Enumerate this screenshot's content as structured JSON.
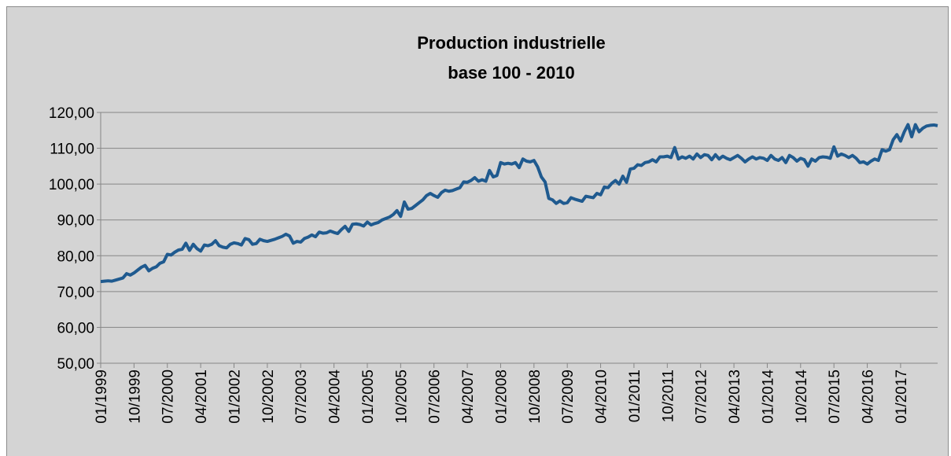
{
  "chart_data": {
    "type": "line",
    "title": "Production industrielle",
    "subtitle": "base 100 - 2010",
    "categories": [
      "01/1999",
      null,
      null,
      null,
      null,
      null,
      null,
      null,
      null,
      "10/1999",
      null,
      null,
      null,
      null,
      null,
      null,
      null,
      null,
      "07/2000",
      null,
      null,
      null,
      null,
      null,
      null,
      null,
      null,
      "04/2001",
      null,
      null,
      null,
      null,
      null,
      null,
      null,
      null,
      "01/2002",
      null,
      null,
      null,
      null,
      null,
      null,
      null,
      null,
      "10/2002",
      null,
      null,
      null,
      null,
      null,
      null,
      null,
      null,
      "07/2003",
      null,
      null,
      null,
      null,
      null,
      null,
      null,
      null,
      "04/2004",
      null,
      null,
      null,
      null,
      null,
      null,
      null,
      null,
      "01/2005",
      null,
      null,
      null,
      null,
      null,
      null,
      null,
      null,
      "10/2005",
      null,
      null,
      null,
      null,
      null,
      null,
      null,
      null,
      "07/2006",
      null,
      null,
      null,
      null,
      null,
      null,
      null,
      null,
      "04/2007",
      null,
      null,
      null,
      null,
      null,
      null,
      null,
      null,
      "01/2008",
      null,
      null,
      null,
      null,
      null,
      null,
      null,
      null,
      "10/2008",
      null,
      null,
      null,
      null,
      null,
      null,
      null,
      null,
      "07/2009",
      null,
      null,
      null,
      null,
      null,
      null,
      null,
      null,
      "04/2010",
      null,
      null,
      null,
      null,
      null,
      null,
      null,
      null,
      "01/2011",
      null,
      null,
      null,
      null,
      null,
      null,
      null,
      null,
      "10/2011",
      null,
      null,
      null,
      null,
      null,
      null,
      null,
      null,
      "07/2012",
      null,
      null,
      null,
      null,
      null,
      null,
      null,
      null,
      "04/2013",
      null,
      null,
      null,
      null,
      null,
      null,
      null,
      null,
      "01/2014",
      null,
      null,
      null,
      null,
      null,
      null,
      null,
      null,
      "10/2014",
      null,
      null,
      null,
      null,
      null,
      null,
      null,
      null,
      "07/2015",
      null,
      null,
      null,
      null,
      null,
      null,
      null,
      null,
      "04/2016",
      null,
      null,
      null,
      null,
      null,
      null,
      null,
      null,
      "01/2017",
      null,
      null,
      null,
      null,
      null,
      null,
      null,
      null,
      null,
      null
    ],
    "series": [
      {
        "color": "#1f5a8f",
        "values": [
          72.8,
          72.9,
          73.0,
          72.9,
          73.2,
          73.5,
          73.8,
          75.0,
          74.6,
          75.2,
          76.0,
          76.8,
          77.3,
          75.8,
          76.5,
          76.9,
          77.9,
          78.3,
          80.4,
          80.2,
          81.0,
          81.6,
          81.8,
          83.5,
          81.5,
          83.2,
          82.0,
          81.3,
          83.0,
          82.8,
          83.2,
          84.2,
          82.8,
          82.4,
          82.2,
          83.2,
          83.6,
          83.4,
          83.0,
          84.8,
          84.5,
          83.2,
          83.4,
          84.6,
          84.2,
          84.0,
          84.3,
          84.6,
          85.0,
          85.4,
          86.0,
          85.5,
          83.5,
          84.0,
          83.8,
          84.8,
          85.2,
          85.8,
          85.3,
          86.6,
          86.3,
          86.4,
          86.9,
          86.5,
          86.2,
          87.3,
          88.2,
          86.8,
          88.8,
          88.9,
          88.7,
          88.3,
          89.4,
          88.6,
          89.0,
          89.3,
          90.0,
          90.4,
          90.8,
          91.5,
          92.6,
          91.0,
          95.0,
          93.0,
          93.2,
          94.0,
          94.8,
          95.6,
          96.8,
          97.4,
          96.8,
          96.3,
          97.6,
          98.3,
          98.0,
          98.2,
          98.6,
          99.0,
          100.6,
          100.5,
          101.0,
          101.8,
          100.8,
          101.2,
          100.8,
          103.8,
          102.0,
          102.4,
          106.0,
          105.6,
          105.8,
          105.6,
          106.0,
          104.6,
          107.0,
          106.4,
          106.2,
          106.6,
          104.8,
          102.0,
          100.6,
          96.0,
          95.6,
          94.6,
          95.3,
          94.6,
          94.8,
          96.2,
          95.8,
          95.5,
          95.2,
          96.6,
          96.4,
          96.2,
          97.4,
          97.0,
          99.2,
          99.0,
          100.2,
          101.0,
          100.0,
          102.2,
          100.5,
          104.2,
          104.4,
          105.4,
          105.2,
          106.0,
          106.2,
          106.8,
          106.2,
          107.6,
          107.6,
          107.8,
          107.4,
          110.2,
          107.0,
          107.6,
          107.2,
          107.8,
          107.0,
          108.4,
          107.4,
          108.2,
          108.0,
          106.8,
          108.2,
          107.0,
          107.8,
          107.2,
          106.8,
          107.4,
          108.0,
          107.2,
          106.2,
          107.0,
          107.6,
          107.0,
          107.4,
          107.2,
          106.6,
          108.0,
          107.0,
          106.6,
          107.4,
          106.0,
          108.0,
          107.4,
          106.4,
          107.2,
          106.8,
          105.0,
          107.0,
          106.4,
          107.4,
          107.6,
          107.5,
          107.2,
          110.4,
          107.8,
          108.4,
          108.0,
          107.4,
          108.0,
          107.2,
          106.0,
          106.2,
          105.6,
          106.4,
          107.0,
          106.6,
          109.6,
          109.2,
          109.6,
          112.4,
          113.8,
          112.0,
          114.6,
          116.6,
          113.2,
          116.6,
          114.6,
          115.6,
          116.2,
          116.4,
          116.5,
          116.3
        ]
      }
    ],
    "ylim": [
      50,
      120
    ],
    "yticks": [
      {
        "value": 50,
        "label": "50,00"
      },
      {
        "value": 60,
        "label": "60,00"
      },
      {
        "value": 70,
        "label": "70,00"
      },
      {
        "value": 80,
        "label": "80,00"
      },
      {
        "value": 90,
        "label": "90,00"
      },
      {
        "value": 100,
        "label": "100,00"
      },
      {
        "value": 110,
        "label": "110,00"
      },
      {
        "value": 120,
        "label": "120,00"
      }
    ],
    "grid": true
  }
}
